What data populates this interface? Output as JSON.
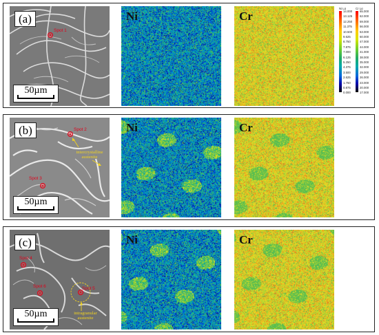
{
  "panels": [
    {
      "label": "(a)",
      "scale": "50µm",
      "spots": [
        {
          "label": "Spot 1"
        }
      ],
      "annotations": [],
      "maps": [
        {
          "element": "Ni"
        },
        {
          "element": "Cr"
        }
      ]
    },
    {
      "label": "(b)",
      "scale": "50µm",
      "spots": [
        {
          "label": "Spot 2"
        },
        {
          "label": "Spot 3"
        }
      ],
      "annotations": [
        {
          "text": "intercrystalline austenite"
        }
      ],
      "maps": [
        {
          "element": "Ni"
        },
        {
          "element": "Cr"
        }
      ]
    },
    {
      "label": "(c)",
      "scale": "50µm",
      "spots": [
        {
          "label": "Spot 4"
        },
        {
          "label": "Spot 6"
        },
        {
          "label": "Spot 5"
        }
      ],
      "annotations": [
        {
          "text": "intragranular austenite"
        }
      ],
      "maps": [
        {
          "element": "Ni"
        },
        {
          "element": "Cr"
        }
      ]
    }
  ],
  "legends": [
    {
      "title": "Ni Lα",
      "ticks": [
        "14.000",
        "13.125",
        "12.250",
        "11.375",
        "10.500",
        "9.625",
        "8.750",
        "7.875",
        "7.000",
        "6.125",
        "5.250",
        "4.375",
        "3.500",
        "2.625",
        "1.750",
        "0.875",
        "0.000"
      ]
    },
    {
      "title": "Cr Lα",
      "ticks": [
        "65.000",
        "62.000",
        "59.000",
        "56.000",
        "53.000",
        "50.000",
        "47.000",
        "44.000",
        "41.000",
        "38.000",
        "35.000",
        "32.000",
        "29.000",
        "26.000",
        "23.000",
        "20.000",
        "17.000"
      ]
    }
  ],
  "colors": {
    "spot": "#e0001a",
    "annotation": "#f2d321",
    "frame": "#222222"
  }
}
